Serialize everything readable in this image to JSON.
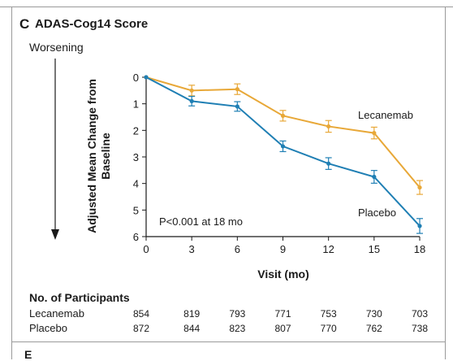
{
  "panel": {
    "letter": "C",
    "title": "ADAS-Cog14 Score",
    "direction_label": "Worsening"
  },
  "chart_data": {
    "type": "line",
    "title": "ADAS-Cog14 Score",
    "xlabel": "Visit (mo)",
    "ylabel": "Adjusted Mean Change from Baseline",
    "x": [
      0,
      3,
      6,
      9,
      12,
      15,
      18
    ],
    "xlim": [
      0,
      18
    ],
    "ylim": [
      0,
      6
    ],
    "y_inverted": true,
    "x_ticks": [
      "0",
      "3",
      "6",
      "9",
      "12",
      "15",
      "18"
    ],
    "y_ticks": [
      "0",
      "1",
      "2",
      "3",
      "4",
      "5",
      "6"
    ],
    "grid": false,
    "series": [
      {
        "name": "Lecanemab",
        "color": "#e8a838",
        "values": [
          0,
          0.5,
          0.45,
          1.45,
          1.85,
          2.1,
          4.15
        ],
        "error": [
          0,
          0.2,
          0.2,
          0.2,
          0.22,
          0.22,
          0.26
        ]
      },
      {
        "name": "Placebo",
        "color": "#1f7fb4",
        "values": [
          0,
          0.9,
          1.1,
          2.6,
          3.25,
          3.75,
          5.6
        ],
        "error": [
          0,
          0.18,
          0.18,
          0.2,
          0.22,
          0.24,
          0.28
        ]
      }
    ],
    "annotations": [
      "P<0.001 at 18 mo"
    ]
  },
  "participants": {
    "title": "No. of Participants",
    "rows": [
      {
        "name": "Lecanemab",
        "values": [
          "854",
          "819",
          "793",
          "771",
          "753",
          "730",
          "703"
        ]
      },
      {
        "name": "Placebo",
        "values": [
          "872",
          "844",
          "823",
          "807",
          "770",
          "762",
          "738"
        ]
      }
    ]
  },
  "next_panel": {
    "letter": "E"
  }
}
